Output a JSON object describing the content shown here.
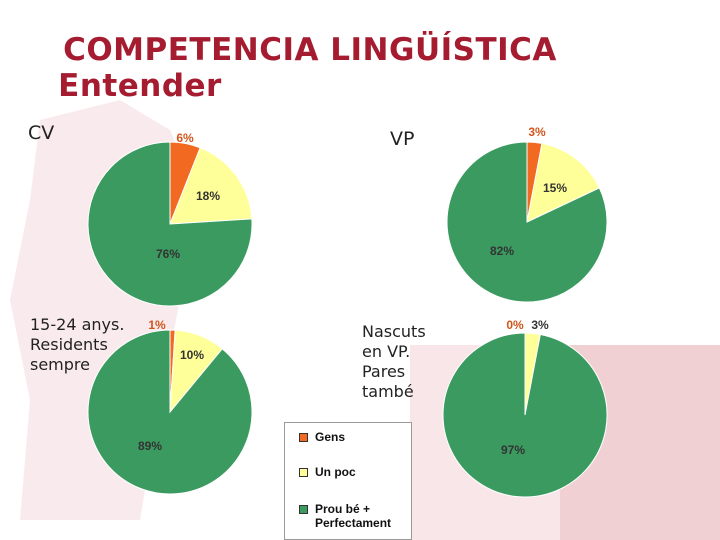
{
  "title": {
    "line1": "COMPETENCIA LINGÜÍSTICA",
    "line2": "Entender"
  },
  "colors": {
    "title": "#a51c30",
    "gens": "#f26a21",
    "un_poc": "#ffff99",
    "prou_be": "#3a9a5f",
    "decor": "#e7b8bf"
  },
  "labels": {
    "cv": "CV",
    "vp": "VP",
    "note_left": "15-24 anys.\nResidents\nsempre",
    "note_right": "Nascuts\nen VP.\nPares\ntambé"
  },
  "chart_data": {
    "type": "pie",
    "legend": [
      {
        "key": "gens",
        "label": "Gens"
      },
      {
        "key": "un_poc",
        "label": "Un poc"
      },
      {
        "key": "prou_be",
        "label": "Prou bé +\nPerfectament"
      }
    ],
    "pies": [
      {
        "name": "CV",
        "values": [
          6,
          18,
          76
        ],
        "labels": [
          "6%",
          "18%",
          "76%"
        ]
      },
      {
        "name": "VP",
        "values": [
          3,
          15,
          82
        ],
        "labels": [
          "3%",
          "15%",
          "82%"
        ]
      },
      {
        "name": "",
        "values": [
          1,
          10,
          89
        ],
        "labels": [
          "1%",
          "10%",
          "89%"
        ]
      },
      {
        "name": "",
        "values": [
          0,
          3,
          97
        ],
        "labels": [
          "0%",
          "3%",
          "97%"
        ]
      }
    ]
  }
}
